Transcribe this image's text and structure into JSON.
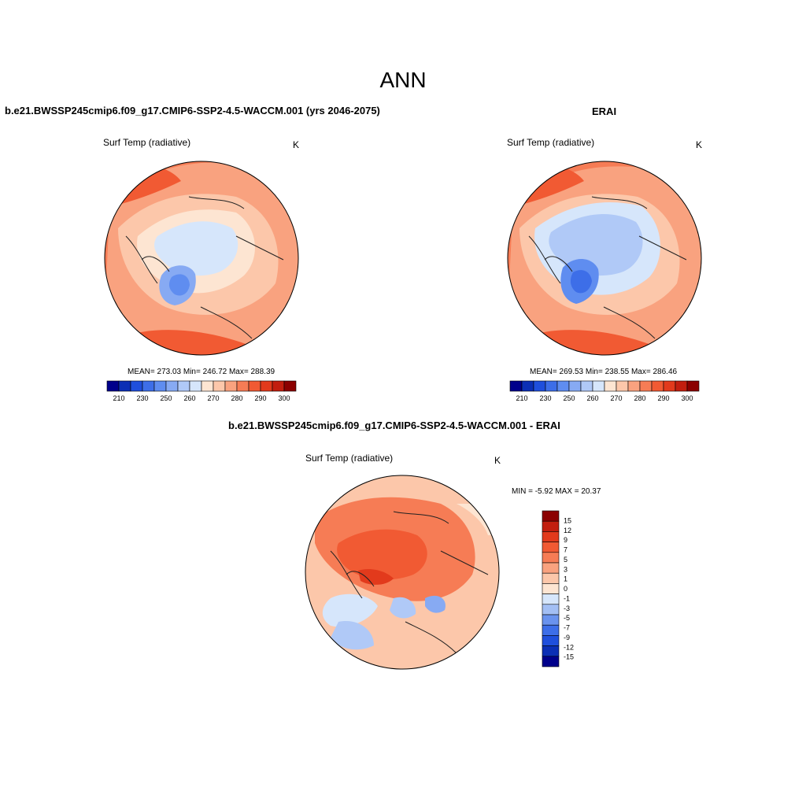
{
  "title": "ANN",
  "panels": [
    {
      "case_title": "b.e21.BWSSP245cmip6.f09_g17.CMIP6-SSP2-4.5-WACCM.001 (yrs 2046-2075)",
      "variable": "Surf Temp (radiative)",
      "units": "K",
      "stats": "MEAN= 273.03  Min= 246.72  Max= 288.39"
    },
    {
      "case_title": "ERAI",
      "variable": "Surf Temp (radiative)",
      "units": "K",
      "stats": "MEAN= 269.53  Min= 238.55  Max= 286.46"
    },
    {
      "case_title": "b.e21.BWSSP245cmip6.f09_g17.CMIP6-SSP2-4.5-WACCM.001 - ERAI",
      "variable": "Surf Temp (radiative)",
      "units": "K",
      "stats": "MIN =  -5.92 MAX =  20.37"
    }
  ],
  "colorbar_abs": {
    "colors": [
      "#00008b",
      "#0b2fb5",
      "#1f4fdc",
      "#3d6ee8",
      "#5f8df0",
      "#87aaf3",
      "#b0c9f7",
      "#d6e6fb",
      "#fde5d2",
      "#fcc7aa",
      "#f9a27f",
      "#f67c55",
      "#f15a33",
      "#e23a1c",
      "#c21e0f",
      "#8b0000"
    ],
    "ticks": [
      "210",
      "230",
      "250",
      "260",
      "270",
      "280",
      "290",
      "300"
    ]
  },
  "colorbar_diff": {
    "colors": [
      "#00008b",
      "#0b2fb5",
      "#1f4fdc",
      "#3d6ee8",
      "#6a93ee",
      "#a3bff4",
      "#d6e6fb",
      "#fde5d2",
      "#fcc7aa",
      "#f9a27f",
      "#f67c55",
      "#f15a33",
      "#e23a1c",
      "#c21e0f",
      "#8b0000"
    ],
    "ticks": [
      "15",
      "12",
      "9",
      "7",
      "5",
      "3",
      "1",
      "0",
      "-1",
      "-3",
      "-5",
      "-7",
      "-9",
      "-12",
      "-15"
    ]
  }
}
